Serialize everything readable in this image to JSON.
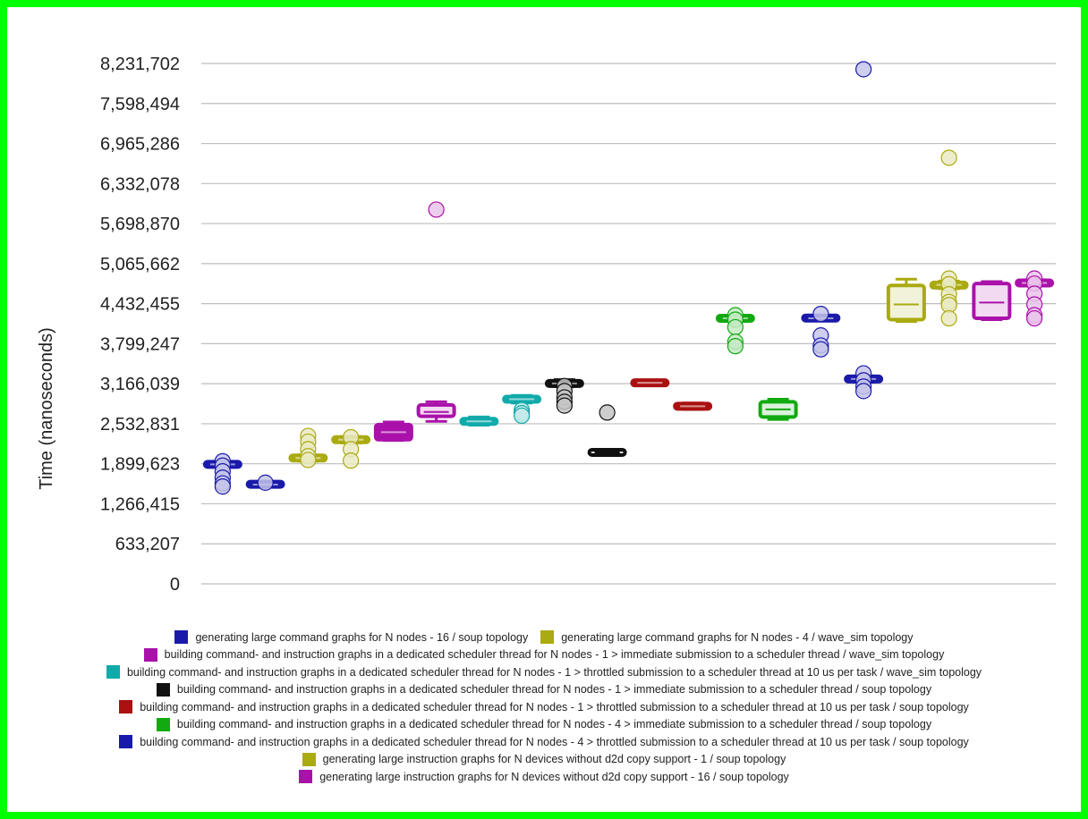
{
  "chart_data": {
    "type": "box",
    "ylabel": "Time (nanoseconds)",
    "y_ticks": [
      "0",
      "633,207",
      "1,266,415",
      "1,899,623",
      "2,532,831",
      "3,166,039",
      "3,799,247",
      "4,432,455",
      "5,065,662",
      "5,698,870",
      "6,332,078",
      "6,965,286",
      "7,598,494",
      "8,231,702"
    ],
    "ylim": [
      0,
      8231702
    ],
    "grid": true,
    "legend_position": "bottom",
    "legend_rows": [
      [
        0,
        1
      ],
      [
        2
      ],
      [
        3
      ],
      [
        4
      ],
      [
        5
      ],
      [
        6
      ],
      [
        7
      ],
      [
        8
      ],
      [
        9
      ]
    ],
    "series": [
      {
        "name": "generating large command graphs for N nodes - 16 / soup topology",
        "color": "#1a1aaa",
        "boxes": [
          {
            "q1": 1870000,
            "median": 1890000,
            "q3": 1910000,
            "whisker_low": 1850000,
            "whisker_high": 1930000,
            "points": [
              1940000,
              1870000,
              1780000,
              1680000,
              1590000,
              1540000
            ],
            "fill": "solid"
          },
          {
            "q1": 1560000,
            "median": 1570000,
            "q3": 1590000,
            "whisker_low": 1540000,
            "whisker_high": 1610000,
            "points": [
              1600000
            ],
            "fill": "solid"
          }
        ]
      },
      {
        "name": "generating large command graphs for N nodes - 4 / wave_sim topology",
        "color": "#aaaa11",
        "boxes": [
          {
            "q1": 1960000,
            "median": 1990000,
            "q3": 2020000,
            "whisker_low": 1940000,
            "whisker_high": 2040000,
            "points": [
              2340000,
              2250000,
              2130000,
              2020000,
              1960000
            ],
            "fill": "solid"
          },
          {
            "q1": 2250000,
            "median": 2280000,
            "q3": 2310000,
            "whisker_low": 2230000,
            "whisker_high": 2330000,
            "points": [
              2320000,
              2130000,
              1950000
            ],
            "fill": "solid"
          }
        ]
      },
      {
        "name": "building command- and instruction graphs in a dedicated scheduler thread for N nodes - 1 > immediate submission to a scheduler thread / wave_sim topology",
        "color": "#aa11aa",
        "boxes": [
          {
            "q1": 2280000,
            "median": 2400000,
            "q3": 2520000,
            "whisker_low": 2270000,
            "whisker_high": 2560000,
            "points": [],
            "fill": "solid"
          },
          {
            "q1": 2650000,
            "median": 2720000,
            "q3": 2830000,
            "whisker_low": 2570000,
            "whisker_high": 2880000,
            "points": [
              5920000
            ],
            "fill": "light"
          }
        ]
      },
      {
        "name": "building command- and instruction graphs in a dedicated scheduler thread for N nodes - 1 > throttled submission to a scheduler thread at 10 us per task / wave_sim topology",
        "color": "#11aaaa",
        "boxes": [
          {
            "q1": 2530000,
            "median": 2570000,
            "q3": 2610000,
            "whisker_low": 2510000,
            "whisker_high": 2640000,
            "points": [],
            "fill": "solid"
          },
          {
            "q1": 2880000,
            "median": 2920000,
            "q3": 2960000,
            "whisker_low": 2860000,
            "whisker_high": 2980000,
            "points": [
              2750000,
              2700000,
              2660000
            ],
            "fill": "solid"
          }
        ]
      },
      {
        "name": "building command- and instruction graphs in a dedicated scheduler thread for N nodes - 1 > immediate submission to a scheduler thread / soup topology",
        "color": "#111111",
        "boxes": [
          {
            "q1": 3140000,
            "median": 3170000,
            "q3": 3200000,
            "whisker_low": 3120000,
            "whisker_high": 3230000,
            "points": [
              3130000,
              3050000,
              2950000,
              2880000,
              2820000
            ],
            "fill": "solid"
          },
          {
            "q1": 2060000,
            "median": 2080000,
            "q3": 2100000,
            "whisker_low": 2040000,
            "whisker_high": 2120000,
            "points": [
              2710000
            ],
            "fill": "light"
          }
        ]
      },
      {
        "name": "building command- and instruction graphs in a dedicated scheduler thread for N nodes - 1 > throttled submission to a scheduler thread at 10 us per task / soup topology",
        "color": "#aa1111",
        "boxes": [
          {
            "q1": 3160000,
            "median": 3180000,
            "q3": 3200000,
            "whisker_low": 3150000,
            "whisker_high": 3220000,
            "points": [],
            "fill": "solid"
          },
          {
            "q1": 2780000,
            "median": 2810000,
            "q3": 2840000,
            "whisker_low": 2760000,
            "whisker_high": 2860000,
            "points": [],
            "fill": "solid"
          }
        ]
      },
      {
        "name": "building command- and instruction graphs in a dedicated scheduler thread for N nodes - 4 > immediate submission to a scheduler thread / soup topology",
        "color": "#11aa11",
        "boxes": [
          {
            "q1": 4170000,
            "median": 4200000,
            "q3": 4230000,
            "whisker_low": 4150000,
            "whisker_high": 4250000,
            "points": [
              4250000,
              4180000,
              4060000,
              3830000,
              3760000
            ],
            "fill": "solid"
          },
          {
            "q1": 2640000,
            "median": 2760000,
            "q3": 2880000,
            "whisker_low": 2600000,
            "whisker_high": 2920000,
            "points": [],
            "fill": "light"
          }
        ]
      },
      {
        "name": "building command- and instruction graphs in a dedicated scheduler thread for N nodes - 4 > throttled submission to a scheduler thread at 10 us per task / soup topology",
        "color": "#1a1aaa",
        "boxes": [
          {
            "q1": 4180000,
            "median": 4200000,
            "q3": 4230000,
            "whisker_low": 4160000,
            "whisker_high": 4250000,
            "points": [
              4270000,
              3930000,
              3770000,
              3710000
            ],
            "fill": "solid"
          },
          {
            "q1": 3210000,
            "median": 3240000,
            "q3": 3270000,
            "whisker_low": 3190000,
            "whisker_high": 3290000,
            "points": [
              3330000,
              3220000,
              3120000,
              3050000,
              8140000
            ],
            "fill": "solid"
          }
        ]
      },
      {
        "name": "generating large instruction graphs for N devices without d2d copy support - 1 / soup topology",
        "color": "#aaaa11",
        "boxes": [
          {
            "q1": 4180000,
            "median": 4420000,
            "q3": 4720000,
            "whisker_low": 4150000,
            "whisker_high": 4820000,
            "points": [],
            "fill": "light"
          },
          {
            "q1": 4690000,
            "median": 4730000,
            "q3": 4760000,
            "whisker_low": 4670000,
            "whisker_high": 4790000,
            "points": [
              4830000,
              4740000,
              4580000,
              4460000,
              4410000,
              4200000,
              6740000
            ],
            "fill": "solid"
          }
        ]
      },
      {
        "name": "generating large instruction graphs for N devices without d2d copy support - 16 / soup topology",
        "color": "#aa11aa",
        "boxes": [
          {
            "q1": 4200000,
            "median": 4450000,
            "q3": 4750000,
            "whisker_low": 4180000,
            "whisker_high": 4780000,
            "points": [],
            "fill": "light"
          },
          {
            "q1": 4730000,
            "median": 4760000,
            "q3": 4790000,
            "whisker_low": 4710000,
            "whisker_high": 4810000,
            "points": [
              4830000,
              4750000,
              4590000,
              4420000,
              4250000,
              4200000
            ],
            "fill": "solid"
          }
        ]
      }
    ]
  }
}
